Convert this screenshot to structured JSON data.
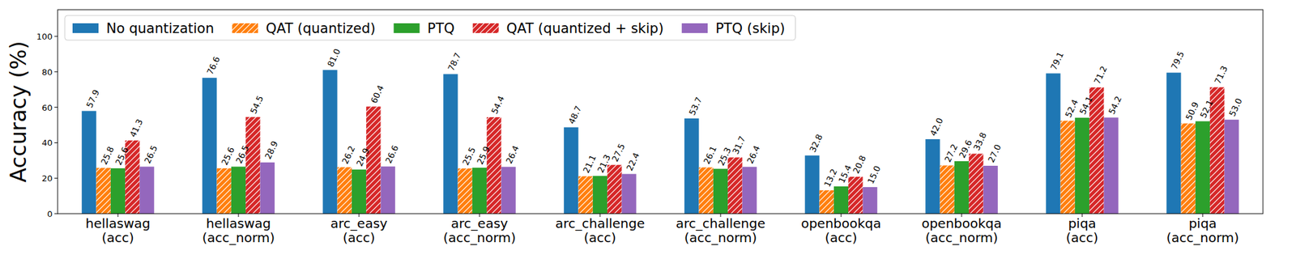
{
  "chart_data": {
    "type": "bar",
    "y_label": "Accuracy (%)",
    "categories": [
      "hellaswag\n(acc)",
      "hellaswag\n(acc_norm)",
      "arc_easy\n(acc)",
      "arc_easy\n(acc_norm)",
      "arc_challenge\n(acc)",
      "arc_challenge\n(acc_norm)",
      "openbookqa\n(acc)",
      "openbookqa\n(acc_norm)",
      "piqa\n(acc)",
      "piqa\n(acc_norm)"
    ],
    "series": [
      {
        "name": "No quantization",
        "color": "#1f77b4",
        "values": [
          57.9,
          76.6,
          81.0,
          78.7,
          48.7,
          53.7,
          32.8,
          42.0,
          79.1,
          79.5
        ],
        "value_labels": [
          "57.9",
          "76.6",
          "81.0",
          "78.7",
          "48.7",
          "53.7",
          "32.8",
          "42.0",
          "79.1",
          "79.5"
        ]
      },
      {
        "name": "QAT (quantized)",
        "color": "#ff7f0e",
        "values": [
          25.8,
          25.6,
          26.2,
          25.5,
          21.1,
          26.1,
          13.2,
          27.2,
          52.4,
          50.9
        ],
        "value_labels": [
          "25.8",
          "25.6",
          "26.2",
          "25.5",
          "21.1",
          "26.1",
          "13.2",
          "27.2",
          "52.4",
          "50.9"
        ]
      },
      {
        "name": "PTQ",
        "color": "#2ca02c",
        "values": [
          25.6,
          26.5,
          24.9,
          25.9,
          21.3,
          25.3,
          15.4,
          29.6,
          54.1,
          52.1
        ],
        "value_labels": [
          "25.6",
          "26.5",
          "24.9",
          "25.9",
          "21.3",
          "25.3",
          "15.4",
          "29.6",
          "54.1",
          "52.1"
        ]
      },
      {
        "name": "QAT (quantized + skip)",
        "color": "#d62728",
        "values": [
          41.3,
          54.5,
          60.4,
          54.4,
          27.5,
          31.7,
          20.8,
          33.8,
          71.2,
          71.3
        ],
        "value_labels": [
          "41.3",
          "54.5",
          "60.4",
          "54.4",
          "27.5",
          "31.7",
          "20.8",
          "33.8",
          "71.2",
          "71.3"
        ]
      },
      {
        "name": "PTQ (skip)",
        "color": "#9467bd",
        "values": [
          26.5,
          28.9,
          26.6,
          26.4,
          22.4,
          26.4,
          15.0,
          27.0,
          54.2,
          53.0
        ],
        "value_labels": [
          "26.5",
          "28.9",
          "26.6",
          "26.4",
          "22.4",
          "26.4",
          "15.0",
          "27.0",
          "54.2",
          "53.0"
        ]
      }
    ],
    "ylim": [
      0,
      115
    ],
    "yticks": [
      0,
      20,
      40,
      60,
      80,
      100
    ],
    "grid": false,
    "legend": "upper left",
    "data_labels": true
  }
}
